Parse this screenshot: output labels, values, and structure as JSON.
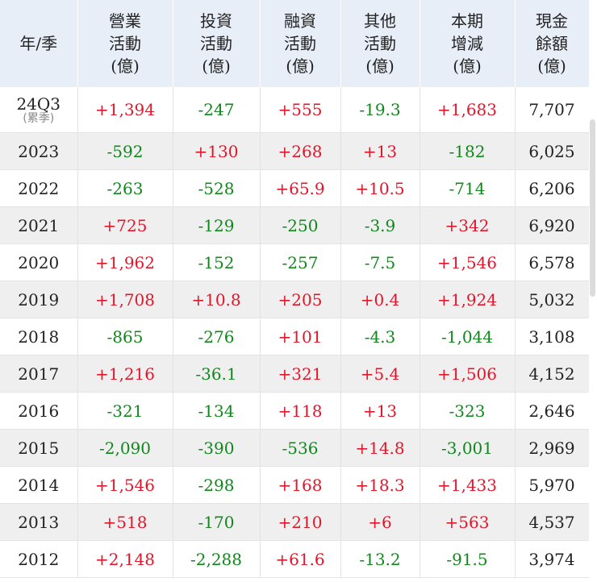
{
  "headers": [
    [
      "年/季"
    ],
    [
      "營業",
      "活動",
      "(億)"
    ],
    [
      "投資",
      "活動",
      "(億)"
    ],
    [
      "融資",
      "活動",
      "(億)"
    ],
    [
      "其他",
      "活動",
      "(億)"
    ],
    [
      "本期",
      "增減",
      "(億)"
    ],
    [
      "現金",
      "餘額",
      "(億)"
    ]
  ],
  "rows": [
    {
      "period": "24Q3",
      "note": "(累季)",
      "op": "+1,394",
      "inv": "-247",
      "fin": "+555",
      "oth": "-19.3",
      "chg": "+1,683",
      "cash": "7,707"
    },
    {
      "period": "2023",
      "op": "-592",
      "inv": "+130",
      "fin": "+268",
      "oth": "+13",
      "chg": "-182",
      "cash": "6,025"
    },
    {
      "period": "2022",
      "op": "-263",
      "inv": "-528",
      "fin": "+65.9",
      "oth": "+10.5",
      "chg": "-714",
      "cash": "6,206"
    },
    {
      "period": "2021",
      "op": "+725",
      "inv": "-129",
      "fin": "-250",
      "oth": "-3.9",
      "chg": "+342",
      "cash": "6,920"
    },
    {
      "period": "2020",
      "op": "+1,962",
      "inv": "-152",
      "fin": "-257",
      "oth": "-7.5",
      "chg": "+1,546",
      "cash": "6,578"
    },
    {
      "period": "2019",
      "op": "+1,708",
      "inv": "+10.8",
      "fin": "+205",
      "oth": "+0.4",
      "chg": "+1,924",
      "cash": "5,032"
    },
    {
      "period": "2018",
      "op": "-865",
      "inv": "-276",
      "fin": "+101",
      "oth": "-4.3",
      "chg": "-1,044",
      "cash": "3,108"
    },
    {
      "period": "2017",
      "op": "+1,216",
      "inv": "-36.1",
      "fin": "+321",
      "oth": "+5.4",
      "chg": "+1,506",
      "cash": "4,152"
    },
    {
      "period": "2016",
      "op": "-321",
      "inv": "-134",
      "fin": "+118",
      "oth": "+13",
      "chg": "-323",
      "cash": "2,646"
    },
    {
      "period": "2015",
      "op": "-2,090",
      "inv": "-390",
      "fin": "-536",
      "oth": "+14.8",
      "chg": "-3,001",
      "cash": "2,969"
    },
    {
      "period": "2014",
      "op": "+1,546",
      "inv": "-298",
      "fin": "+168",
      "oth": "+18.3",
      "chg": "+1,433",
      "cash": "5,970"
    },
    {
      "period": "2013",
      "op": "+518",
      "inv": "-170",
      "fin": "+210",
      "oth": "+6",
      "chg": "+563",
      "cash": "4,537"
    },
    {
      "period": "2012",
      "op": "+2,148",
      "inv": "-2,288",
      "fin": "+61.6",
      "oth": "-13.2",
      "chg": "-91.5",
      "cash": "3,974"
    }
  ],
  "colors": {
    "positive": "#e0162b",
    "negative": "#11871d",
    "header_bg": "#e8eef7",
    "stripe": "#efefef"
  }
}
